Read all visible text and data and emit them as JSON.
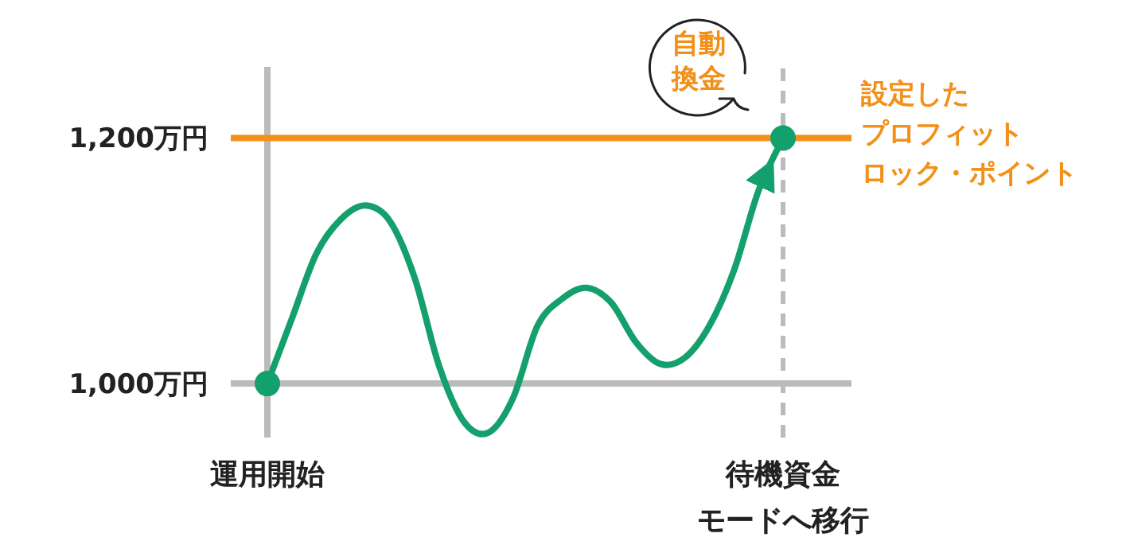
{
  "chart_data": {
    "type": "line",
    "categories": [
      "運用開始",
      null,
      null,
      null,
      null,
      null,
      null,
      null,
      null,
      null,
      null,
      null,
      null,
      null,
      null,
      null,
      null,
      null,
      null,
      null,
      null,
      "待機資金モードへ移行"
    ],
    "ylim": [
      956,
      1258
    ],
    "yticks": [
      {
        "value": 1000,
        "label": "1,000万円"
      },
      {
        "value": 1200,
        "label": "1,200万円"
      }
    ],
    "ref_lines": [
      {
        "axis": "y",
        "value": 1000,
        "label": null,
        "color": "#bbbbbb",
        "line_style": "solid"
      },
      {
        "axis": "y",
        "value": 1200,
        "label": "設定したプロフィットロック・ポイント",
        "color": "#f39019",
        "line_style": "solid"
      },
      {
        "axis": "x",
        "value": "待機資金モードへ移行",
        "label": null,
        "color": "#bbbbbb",
        "line_style": "dashed"
      }
    ],
    "annotations": [
      "自動換金"
    ],
    "series": [
      {
        "color": "#14a06c",
        "line_style": "solid",
        "values": [
          1000,
          1053,
          1106,
          1134,
          1145,
          1132,
          1086,
          1014,
          969,
          960,
          988,
          1047,
          1069,
          1078,
          1066,
          1034,
          1016,
          1021,
          1047,
          1092,
          1157,
          1200
        ]
      },
      {
        "type": "scatter",
        "color": "#14a06c",
        "marker": "circle",
        "values": [
          1000,
          null,
          null,
          null,
          null,
          null,
          null,
          null,
          null,
          null,
          null,
          null,
          null,
          null,
          null,
          null,
          null,
          null,
          null,
          null,
          null,
          1200
        ]
      }
    ]
  }
}
